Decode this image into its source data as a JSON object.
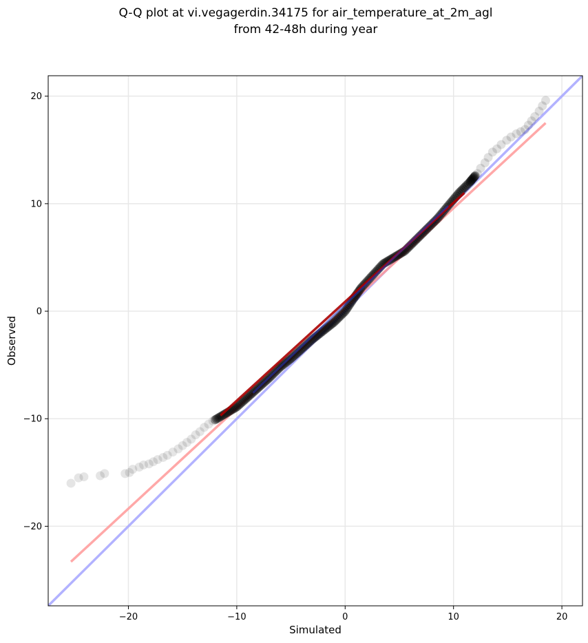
{
  "chart_data": {
    "type": "scatter",
    "title_lines": [
      "Q-Q plot at vi.vegagerdin.34175 for air_temperature_at_2m_agl",
      "from 42-48h during year"
    ],
    "xlabel": "Simulated",
    "ylabel": "Observed",
    "xlim": [
      -27.4,
      21.9
    ],
    "ylim": [
      -27.4,
      21.9
    ],
    "xticks": [
      -20,
      -10,
      0,
      10,
      20
    ],
    "yticks": [
      -20,
      -10,
      0,
      10,
      20
    ],
    "tick_labels": [
      "−20",
      "−10",
      "0",
      "10",
      "20"
    ],
    "grid": true,
    "points": {
      "color": "#000000",
      "tail_low": [
        [
          -25.3,
          -16.0
        ],
        [
          -24.6,
          -15.5
        ],
        [
          -24.1,
          -15.4
        ],
        [
          -22.6,
          -15.3
        ],
        [
          -22.2,
          -15.1
        ],
        [
          -20.3,
          -15.1
        ],
        [
          -19.9,
          -15.0
        ],
        [
          -19.6,
          -14.7
        ],
        [
          -19.0,
          -14.5
        ],
        [
          -18.6,
          -14.3
        ],
        [
          -18.1,
          -14.2
        ],
        [
          -17.7,
          -14.0
        ],
        [
          -17.3,
          -13.8
        ],
        [
          -16.8,
          -13.6
        ],
        [
          -16.4,
          -13.4
        ],
        [
          -15.9,
          -13.1
        ],
        [
          -15.4,
          -12.8
        ],
        [
          -15.0,
          -12.5
        ],
        [
          -14.6,
          -12.2
        ],
        [
          -14.2,
          -11.9
        ],
        [
          -13.8,
          -11.5
        ],
        [
          -13.4,
          -11.2
        ],
        [
          -13.0,
          -10.8
        ],
        [
          -12.6,
          -10.5
        ],
        [
          -12.2,
          -10.2
        ]
      ],
      "body": [
        [
          -12.0,
          -10.1
        ],
        [
          -11.0,
          -9.5
        ],
        [
          -10.0,
          -8.9
        ],
        [
          -9.0,
          -8.0
        ],
        [
          -8.0,
          -7.1
        ],
        [
          -7.0,
          -6.2
        ],
        [
          -6.0,
          -5.2
        ],
        [
          -5.0,
          -4.4
        ],
        [
          -4.0,
          -3.5
        ],
        [
          -3.0,
          -2.6
        ],
        [
          -2.0,
          -1.8
        ],
        [
          -1.0,
          -1.0
        ],
        [
          0.0,
          0.0
        ],
        [
          0.8,
          1.2
        ],
        [
          1.5,
          2.2
        ],
        [
          2.5,
          3.3
        ],
        [
          3.5,
          4.4
        ],
        [
          4.5,
          5.0
        ],
        [
          5.5,
          5.6
        ],
        [
          6.5,
          6.6
        ],
        [
          7.5,
          7.6
        ],
        [
          8.5,
          8.6
        ],
        [
          9.5,
          9.8
        ],
        [
          10.5,
          11.0
        ],
        [
          11.5,
          12.0
        ],
        [
          12.0,
          12.6
        ]
      ],
      "tail_high": [
        [
          12.2,
          12.8
        ],
        [
          12.5,
          13.3
        ],
        [
          12.9,
          13.8
        ],
        [
          13.2,
          14.3
        ],
        [
          13.6,
          14.8
        ],
        [
          14.0,
          15.1
        ],
        [
          14.4,
          15.5
        ],
        [
          14.9,
          15.9
        ],
        [
          15.3,
          16.2
        ],
        [
          15.8,
          16.5
        ],
        [
          16.2,
          16.7
        ],
        [
          16.6,
          16.9
        ],
        [
          16.9,
          17.3
        ],
        [
          17.2,
          17.7
        ],
        [
          17.5,
          18.1
        ],
        [
          17.9,
          18.6
        ],
        [
          18.2,
          19.1
        ],
        [
          18.5,
          19.6
        ]
      ]
    },
    "lines": [
      {
        "color": "#aaaaff",
        "role": "identity",
        "from": [
          -27.4,
          -27.4
        ],
        "to": [
          21.9,
          21.9
        ]
      },
      {
        "color": "#ff9999",
        "role": "fit",
        "from": [
          -25.3,
          -23.3
        ],
        "to": [
          18.5,
          17.5
        ]
      },
      {
        "color": "#aa0000",
        "role": "fit-core",
        "from": [
          -11.5,
          -9.7
        ],
        "to": [
          11.0,
          11.0
        ]
      },
      {
        "color": "#2233bb",
        "role": "core-overlay",
        "from": [
          -8.5,
          -7.6
        ],
        "to": [
          9.5,
          9.8
        ]
      }
    ]
  }
}
